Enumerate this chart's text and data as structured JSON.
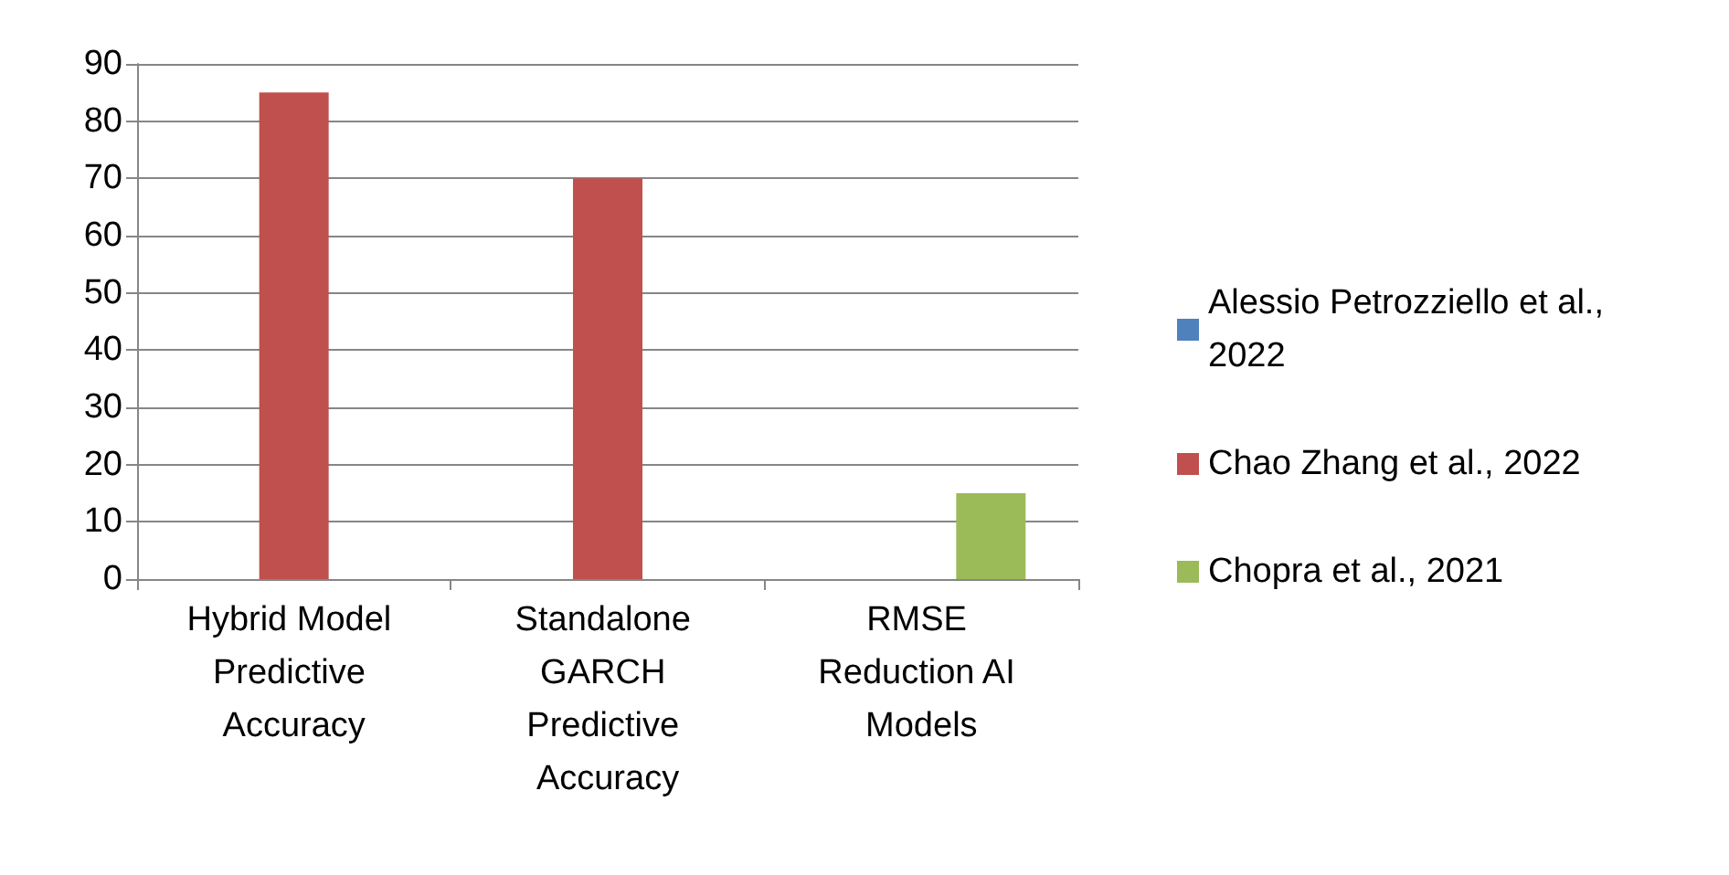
{
  "chart_data": {
    "type": "bar",
    "categories": [
      "Hybrid Model Predictive Accuracy",
      "Standalone GARCH Predictive Accuracy",
      "RMSE Reduction AI Models"
    ],
    "series": [
      {
        "name": "Alessio Petrozziello et al., 2022",
        "color": "#4f81bd",
        "values": [
          null,
          null,
          null
        ]
      },
      {
        "name": "Chao Zhang et al., 2022",
        "color": "#c0504d",
        "values": [
          85,
          70,
          null
        ]
      },
      {
        "name": "Chopra et al., 2021",
        "color": "#9bbb59",
        "values": [
          null,
          null,
          15
        ]
      }
    ],
    "ylim": [
      0,
      90
    ],
    "yticks": [
      0,
      10,
      20,
      30,
      40,
      50,
      60,
      70,
      80,
      90
    ],
    "grid": "y",
    "legend": "right"
  }
}
